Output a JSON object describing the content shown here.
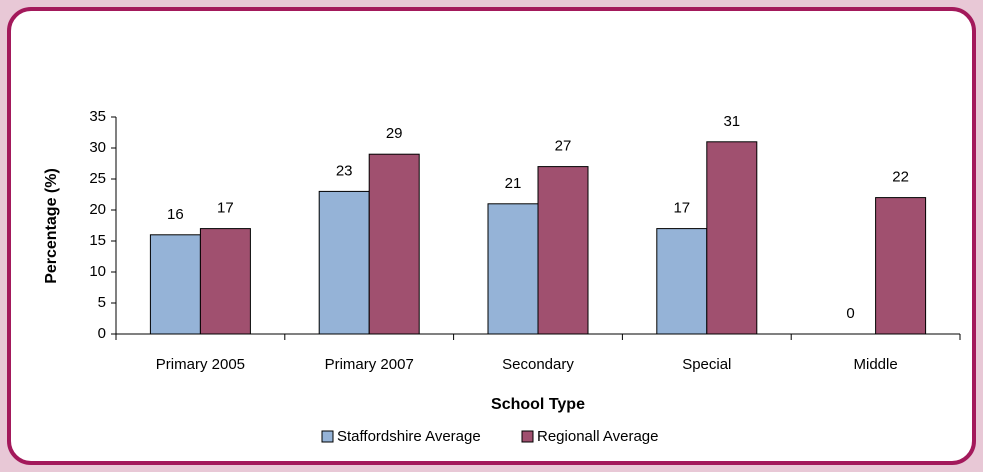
{
  "chart_data": {
    "type": "bar",
    "y_label": "Percentage (%)",
    "x_label": "School Type",
    "categories": [
      "Primary 2005",
      "Primary 2007",
      "Secondary",
      "Special",
      "Middle"
    ],
    "series": [
      {
        "name": "Staffordshire Average",
        "color": "#95b3d7",
        "values": [
          16,
          23,
          21,
          17,
          0
        ]
      },
      {
        "name": "Regionall Average",
        "color": "#a0506f",
        "values": [
          17,
          29,
          27,
          31,
          22
        ]
      }
    ],
    "ylim": [
      0,
      35
    ],
    "yticks": [
      0,
      5,
      10,
      15,
      20,
      25,
      30,
      35
    ],
    "legend": "bottom"
  }
}
